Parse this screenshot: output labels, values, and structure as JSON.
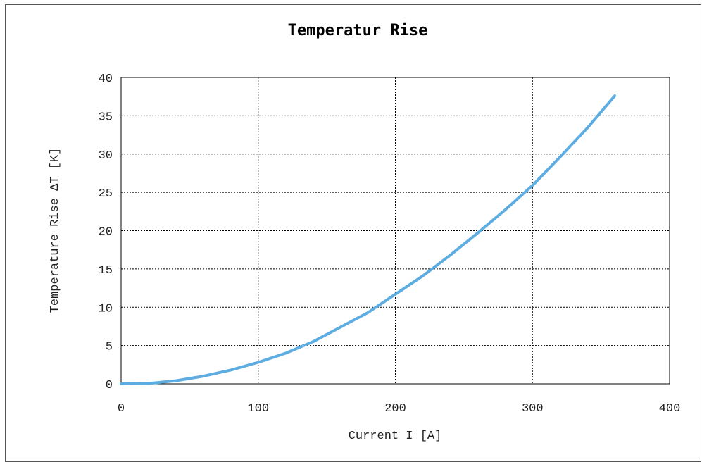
{
  "chart_data": {
    "type": "line",
    "title": "Temperatur Rise",
    "xlabel": "Current I [A]",
    "ylabel": "Temperature Rise ΔT [K]",
    "xlim": [
      0,
      400
    ],
    "ylim": [
      0,
      40
    ],
    "xticks": [
      0,
      100,
      200,
      300,
      400
    ],
    "yticks": [
      0,
      5,
      10,
      15,
      20,
      25,
      30,
      35,
      40
    ],
    "grid": true,
    "line_color": "#5dade2",
    "series": [
      {
        "x": [
          0,
          20,
          40,
          60,
          80,
          100,
          120,
          140,
          160,
          180,
          200,
          220,
          240,
          260,
          280,
          300,
          320,
          340,
          360
        ],
        "y": [
          0,
          0.05,
          0.4,
          1.0,
          1.8,
          2.8,
          4.0,
          5.5,
          7.4,
          9.3,
          11.7,
          14.1,
          16.8,
          19.7,
          22.7,
          25.9,
          29.6,
          33.4,
          37.6
        ]
      }
    ]
  }
}
